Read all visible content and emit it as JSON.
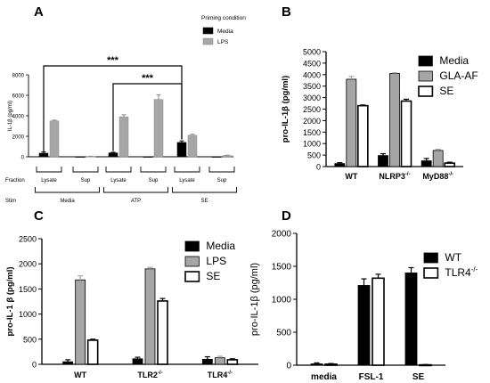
{
  "chart_data": [
    {
      "panel": "A",
      "type": "bar",
      "legend_title": "Priming condition",
      "legend_placement": "top-right",
      "ylabel": "IL-1β (pg/ml)",
      "ylim": [
        0,
        8000
      ],
      "yticks": [
        "0",
        "2000",
        "4000",
        "6000",
        "8000"
      ],
      "categories": [
        "Lysate",
        "Sup",
        "Lysate",
        "Sup",
        "Lysate",
        "Sup"
      ],
      "row_labels": [
        "Fraction",
        "Stim"
      ],
      "stim_groups": [
        "Media",
        "ATP",
        "SE"
      ],
      "series": [
        {
          "name": "Media",
          "color": "#000000",
          "values": [
            350,
            0,
            380,
            0,
            1400,
            0
          ],
          "errors": [
            120,
            0,
            60,
            0,
            150,
            0
          ]
        },
        {
          "name": "LPS",
          "color": "#a6a6a6",
          "values": [
            3500,
            30,
            3900,
            5600,
            2100,
            120
          ],
          "errors": [
            80,
            20,
            200,
            450,
            100,
            30
          ]
        }
      ],
      "significance": [
        "***",
        "***"
      ]
    },
    {
      "panel": "B",
      "type": "bar",
      "legend_placement": "top-right",
      "ylabel": "pro-IL-1β (pg/ml)",
      "ylim": [
        0,
        5000
      ],
      "yticks": [
        "0",
        "500",
        "1000",
        "1500",
        "2000",
        "2500",
        "3000",
        "3500",
        "4000",
        "4500",
        "5000"
      ],
      "categories": [
        "WT",
        "NLRP3-/-",
        "MyD88-/-"
      ],
      "category_labels": [
        {
          "base": "WT",
          "sup": ""
        },
        {
          "base": "NLRP3",
          "sup": "-/-"
        },
        {
          "base": "MyD88",
          "sup": "-/-"
        }
      ],
      "series": [
        {
          "name": "Media",
          "color": "#000000",
          "values": [
            130,
            480,
            250
          ],
          "errors": [
            40,
            80,
            100
          ]
        },
        {
          "name": "GLA-AF",
          "color": "#a6a6a6",
          "values": [
            3800,
            4050,
            700
          ],
          "errors": [
            120,
            30,
            50
          ]
        },
        {
          "name": "SE",
          "color": "#ffffff",
          "values": [
            2650,
            2850,
            150
          ],
          "errors": [
            30,
            80,
            40
          ]
        }
      ]
    },
    {
      "panel": "C",
      "type": "bar",
      "legend_placement": "top-right",
      "ylabel": "pro-IL-1 β (pg/ml)",
      "ylim": [
        0,
        2500
      ],
      "yticks": [
        "0",
        "500",
        "1000",
        "1500",
        "2000",
        "2500"
      ],
      "categories": [
        "WT",
        "TLR2-/-",
        "TLR4-/-"
      ],
      "category_labels": [
        {
          "base": "WT",
          "sup": ""
        },
        {
          "base": "TLR2",
          "sup": "-/-"
        },
        {
          "base": "TLR4",
          "sup": "-/-"
        }
      ],
      "series": [
        {
          "name": "Media",
          "color": "#000000",
          "values": [
            50,
            110,
            100
          ],
          "errors": [
            40,
            30,
            50
          ]
        },
        {
          "name": "LPS",
          "color": "#a6a6a6",
          "values": [
            1680,
            1900,
            130
          ],
          "errors": [
            80,
            30,
            30
          ]
        },
        {
          "name": "SE",
          "color": "#ffffff",
          "values": [
            480,
            1260,
            90
          ],
          "errors": [
            20,
            50,
            20
          ]
        }
      ]
    },
    {
      "panel": "D",
      "type": "bar",
      "legend_placement": "top-right",
      "ylabel": "pro-IL-1β (pg/ml)",
      "ylim": [
        0,
        2000
      ],
      "yticks": [
        "0",
        "500",
        "1000",
        "1500",
        "2000"
      ],
      "categories": [
        "media",
        "FSL-1",
        "SE"
      ],
      "category_labels": [
        {
          "base": "media",
          "sup": ""
        },
        {
          "base": "FSL-1",
          "sup": ""
        },
        {
          "base": "SE",
          "sup": ""
        }
      ],
      "series": [
        {
          "name": "WT",
          "name_sup": "",
          "color": "#000000",
          "values": [
            20,
            1210,
            1400
          ],
          "errors": [
            15,
            100,
            80
          ]
        },
        {
          "name": "TLR4",
          "name_sup": "-/-",
          "color": "#ffffff",
          "values": [
            15,
            1320,
            5
          ],
          "errors": [
            10,
            60,
            5
          ]
        }
      ]
    }
  ]
}
